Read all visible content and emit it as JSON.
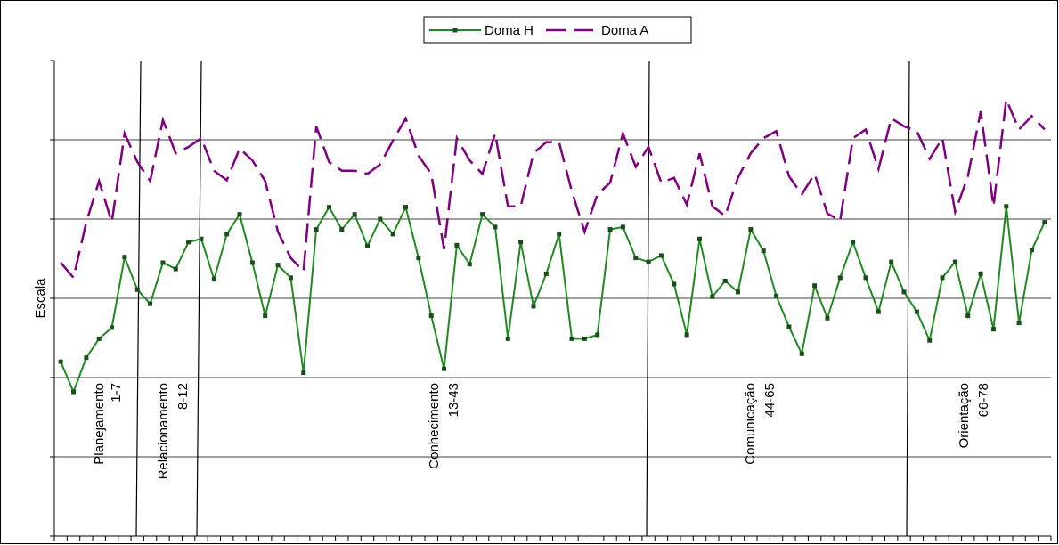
{
  "chart_data": {
    "type": "line",
    "y_label": "Escala",
    "categories": [
      null,
      null,
      null,
      null,
      null,
      null,
      null,
      null,
      null,
      null,
      null,
      null,
      null,
      null,
      null,
      null,
      null,
      null,
      null,
      null,
      null,
      null,
      null,
      null,
      null,
      null,
      null,
      null,
      null,
      null,
      null,
      null,
      null,
      null,
      null,
      null,
      null,
      null,
      null,
      null,
      null,
      null,
      null,
      null,
      null,
      null,
      null,
      null,
      null,
      null,
      null,
      null,
      null,
      null,
      null,
      null,
      null,
      null,
      null,
      null,
      null,
      null,
      null,
      null,
      null,
      null,
      null,
      null,
      null,
      null,
      null,
      null,
      null,
      null,
      null,
      null,
      null,
      null
    ],
    "ylim": [
      0,
      6
    ],
    "yticks": [
      0,
      1,
      2,
      3,
      4,
      5,
      6
    ],
    "grid": true,
    "legend": "top",
    "sections": [
      {
        "name": "Planejamento",
        "range": "1-7"
      },
      {
        "name": "Relacionamento",
        "range": "8-12"
      },
      {
        "name": "Conhecimento",
        "range": "13-43"
      },
      {
        "name": "Comunicação",
        "range": "44-65"
      },
      {
        "name": "Orientação",
        "range": "66-78"
      }
    ],
    "series": [
      {
        "name": "Doma H",
        "color": "#1f8a1f",
        "dash": false,
        "marker": true,
        "values": [
          2.2,
          1.82,
          2.25,
          2.49,
          2.63,
          3.52,
          3.11,
          2.93,
          3.45,
          3.37,
          3.71,
          3.75,
          3.24,
          3.81,
          4.06,
          3.45,
          2.78,
          3.42,
          3.26,
          2.06,
          3.87,
          4.15,
          3.87,
          4.06,
          3.66,
          4.0,
          3.81,
          4.15,
          3.51,
          2.78,
          2.11,
          3.67,
          3.43,
          4.06,
          3.9,
          2.49,
          3.71,
          2.9,
          3.31,
          3.81,
          2.49,
          2.49,
          2.54,
          3.87,
          3.9,
          3.51,
          3.46,
          3.54,
          3.18,
          2.54,
          3.75,
          3.02,
          3.22,
          3.08,
          3.87,
          3.6,
          3.03,
          2.64,
          2.3,
          3.16,
          2.75,
          3.26,
          3.71,
          3.26,
          2.83,
          3.46,
          3.08,
          2.83,
          2.47,
          3.26,
          3.46,
          2.78,
          3.31,
          2.61,
          4.16,
          2.69,
          3.61,
          3.96
        ]
      },
      {
        "name": "Doma A",
        "color": "#800080",
        "dash": true,
        "marker": false,
        "values": [
          3.45,
          3.26,
          3.96,
          4.48,
          3.96,
          5.08,
          4.72,
          4.48,
          5.25,
          4.83,
          4.91,
          5.02,
          4.61,
          4.49,
          4.89,
          4.74,
          4.48,
          3.84,
          3.51,
          3.34,
          5.17,
          4.72,
          4.61,
          4.61,
          4.57,
          4.69,
          4.99,
          5.27,
          4.8,
          4.57,
          3.62,
          5.02,
          4.74,
          4.57,
          5.08,
          4.16,
          4.16,
          4.83,
          4.97,
          4.97,
          4.35,
          3.84,
          4.31,
          4.46,
          5.08,
          4.66,
          4.91,
          4.46,
          4.52,
          4.18,
          4.83,
          4.16,
          4.04,
          4.52,
          4.83,
          5.02,
          5.11,
          4.54,
          4.31,
          4.57,
          4.07,
          3.98,
          5.02,
          5.13,
          4.63,
          5.27,
          5.17,
          5.11,
          4.76,
          5.02,
          4.09,
          4.54,
          5.36,
          4.16,
          5.51,
          5.13,
          5.3,
          5.13
        ]
      }
    ]
  }
}
